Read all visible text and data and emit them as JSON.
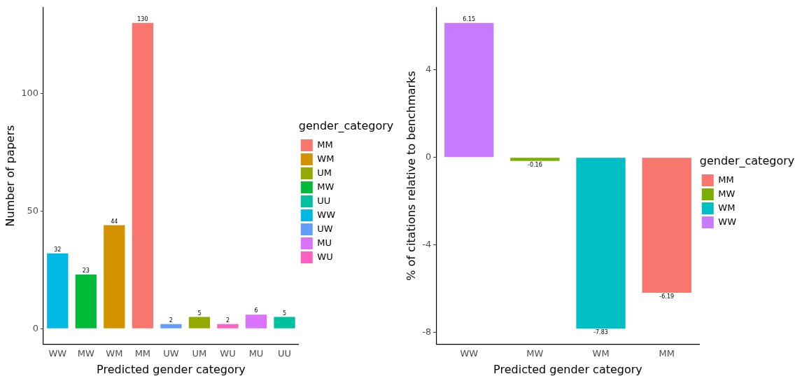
{
  "chart_data": [
    {
      "type": "bar",
      "xlabel": "Predicted gender category",
      "ylabel": "Number of papers",
      "legend_title": "gender_category",
      "legend": "right",
      "data_labels": true,
      "grid": false,
      "categories": [
        "WW",
        "MW",
        "WM",
        "MM",
        "UW",
        "UM",
        "WU",
        "MU",
        "UU"
      ],
      "ylim": [
        -6.5,
        136.5
      ],
      "yticks": [
        0,
        50,
        100
      ],
      "series": [
        {
          "name": "MM",
          "color": "#f8766d",
          "values": [
            null,
            null,
            null,
            130,
            null,
            null,
            null,
            null,
            null
          ]
        },
        {
          "name": "WM",
          "color": "#d39200",
          "values": [
            null,
            null,
            44,
            null,
            null,
            null,
            null,
            null,
            null
          ]
        },
        {
          "name": "UM",
          "color": "#93aa00",
          "values": [
            null,
            null,
            null,
            null,
            null,
            5,
            null,
            null,
            null
          ]
        },
        {
          "name": "MW",
          "color": "#00ba38",
          "values": [
            null,
            23,
            null,
            null,
            null,
            null,
            null,
            null,
            null
          ]
        },
        {
          "name": "UU",
          "color": "#00c19f",
          "values": [
            null,
            null,
            null,
            null,
            null,
            null,
            null,
            null,
            5
          ]
        },
        {
          "name": "WW",
          "color": "#00b9e3",
          "values": [
            32,
            null,
            null,
            null,
            null,
            null,
            null,
            null,
            null
          ]
        },
        {
          "name": "UW",
          "color": "#619cff",
          "values": [
            null,
            null,
            null,
            null,
            2,
            null,
            null,
            null,
            null
          ]
        },
        {
          "name": "MU",
          "color": "#db72fb",
          "values": [
            null,
            null,
            null,
            null,
            null,
            null,
            null,
            6,
            null
          ]
        },
        {
          "name": "WU",
          "color": "#ff61c3",
          "values": [
            null,
            null,
            null,
            null,
            null,
            null,
            2,
            null,
            null
          ]
        }
      ]
    },
    {
      "type": "bar",
      "xlabel": "Predicted gender category",
      "ylabel": "% of citations relative to benchmarks",
      "legend_title": "gender_category",
      "legend": "right",
      "data_labels": true,
      "grid": false,
      "categories": [
        "WW",
        "MW",
        "WM",
        "MM"
      ],
      "ylim": [
        -8.53,
        6.85
      ],
      "yticks": [
        -8,
        -4,
        0,
        4
      ],
      "series": [
        {
          "name": "MM",
          "color": "#f8766d",
          "values": [
            null,
            null,
            null,
            -6.19
          ]
        },
        {
          "name": "MW",
          "color": "#7cae00",
          "values": [
            null,
            -0.16,
            null,
            null
          ]
        },
        {
          "name": "WM",
          "color": "#00bfc4",
          "values": [
            null,
            null,
            -7.83,
            null
          ]
        },
        {
          "name": "WW",
          "color": "#c77cff",
          "values": [
            6.15,
            null,
            null,
            null
          ]
        }
      ]
    }
  ]
}
